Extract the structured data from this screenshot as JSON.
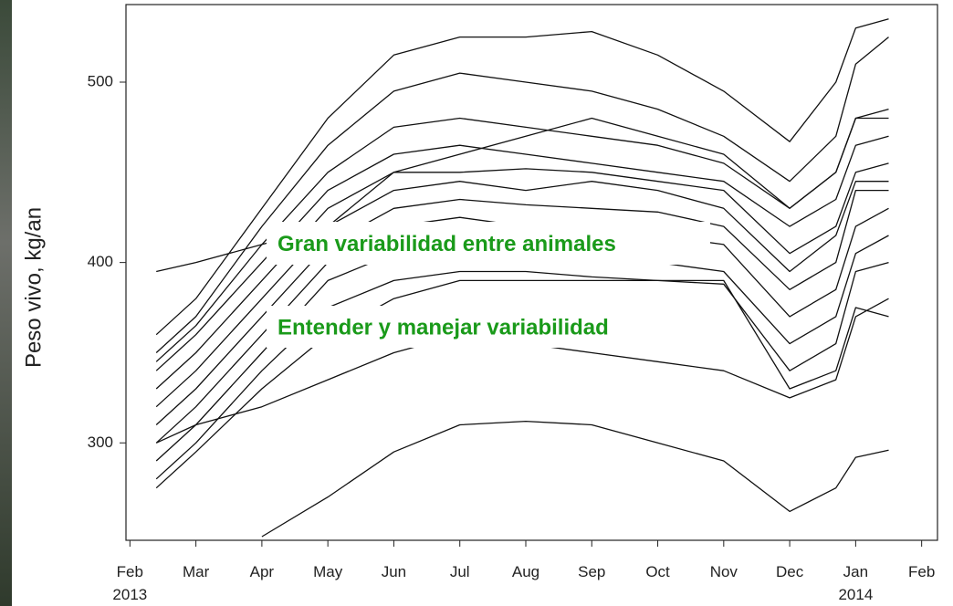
{
  "chart_data": {
    "type": "line",
    "ylabel": "Peso vivo, kg/an",
    "annotations": [
      "Gran variabilidad entre animales",
      "Entender y manejar variabilidad"
    ],
    "annotation_color": "#1a9a1a",
    "x": [
      0.4,
      1,
      2,
      3,
      4,
      5,
      6,
      7,
      8,
      9,
      10,
      10.7,
      11,
      11.5
    ],
    "xlim": [
      -0.06,
      12.24
    ],
    "xticks": [
      {
        "value": 0,
        "label": "Feb\n2013"
      },
      {
        "value": 1,
        "label": "Mar"
      },
      {
        "value": 2,
        "label": "Apr"
      },
      {
        "value": 3,
        "label": "May"
      },
      {
        "value": 4,
        "label": "Jun"
      },
      {
        "value": 5,
        "label": "Jul"
      },
      {
        "value": 6,
        "label": "Aug"
      },
      {
        "value": 7,
        "label": "Sep"
      },
      {
        "value": 8,
        "label": "Oct"
      },
      {
        "value": 9,
        "label": "Nov"
      },
      {
        "value": 10,
        "label": "Dec"
      },
      {
        "value": 11,
        "label": "Jan\n2014"
      },
      {
        "value": 12,
        "label": "Feb"
      }
    ],
    "ylim": [
      246,
      543
    ],
    "yticks": [
      300,
      400,
      500
    ],
    "series": [
      {
        "color": "#111111",
        "values": [
          360,
          380,
          430,
          480,
          515,
          525,
          525,
          528,
          515,
          495,
          467,
          500,
          530,
          535
        ]
      },
      {
        "color": "#111111",
        "values": [
          350,
          370,
          420,
          465,
          495,
          505,
          500,
          495,
          485,
          470,
          445,
          470,
          510,
          525
        ]
      },
      {
        "color": "#111111",
        "values": [
          345,
          365,
          410,
          450,
          475,
          480,
          475,
          470,
          465,
          455,
          430,
          450,
          480,
          485
        ]
      },
      {
        "color": "#111111",
        "values": [
          340,
          360,
          400,
          440,
          460,
          465,
          460,
          455,
          450,
          445,
          420,
          435,
          465,
          470
        ]
      },
      {
        "color": "#111111",
        "values": [
          330,
          350,
          390,
          430,
          450,
          450,
          452,
          450,
          445,
          440,
          405,
          420,
          450,
          455
        ]
      },
      {
        "color": "#111111",
        "values": [
          320,
          340,
          380,
          420,
          440,
          445,
          440,
          445,
          440,
          430,
          395,
          415,
          445,
          445
        ]
      },
      {
        "color": "#111111",
        "values": [
          310,
          330,
          370,
          410,
          430,
          435,
          432,
          430,
          428,
          420,
          385,
          400,
          440,
          440
        ]
      },
      {
        "color": "#111111",
        "values": [
          300,
          320,
          360,
          400,
          420,
          425,
          420,
          420,
          415,
          410,
          370,
          385,
          420,
          430
        ]
      },
      {
        "color": "#111111",
        "values": [
          290,
          310,
          350,
          390,
          405,
          410,
          410,
          405,
          400,
          395,
          355,
          370,
          405,
          415
        ]
      },
      {
        "color": "#111111",
        "values": [
          280,
          300,
          340,
          375,
          390,
          395,
          395,
          392,
          390,
          388,
          340,
          355,
          395,
          400
        ]
      },
      {
        "color": "#111111",
        "values": [
          275,
          295,
          330,
          360,
          380,
          390,
          390,
          390,
          390,
          390,
          330,
          340,
          375,
          370
        ]
      },
      {
        "color": "#111111",
        "values": [
          300,
          310,
          320,
          335,
          350,
          360,
          355,
          350,
          345,
          340,
          325,
          335,
          370,
          380
        ]
      },
      {
        "color": "#111111",
        "values": [
          null,
          null,
          248,
          270,
          295,
          310,
          312,
          310,
          300,
          290,
          262,
          275,
          292,
          296
        ]
      },
      {
        "color": "#111111",
        "values": [
          395,
          400,
          410,
          420,
          450,
          460,
          470,
          480,
          470,
          460,
          430,
          450,
          480,
          480
        ]
      }
    ]
  }
}
